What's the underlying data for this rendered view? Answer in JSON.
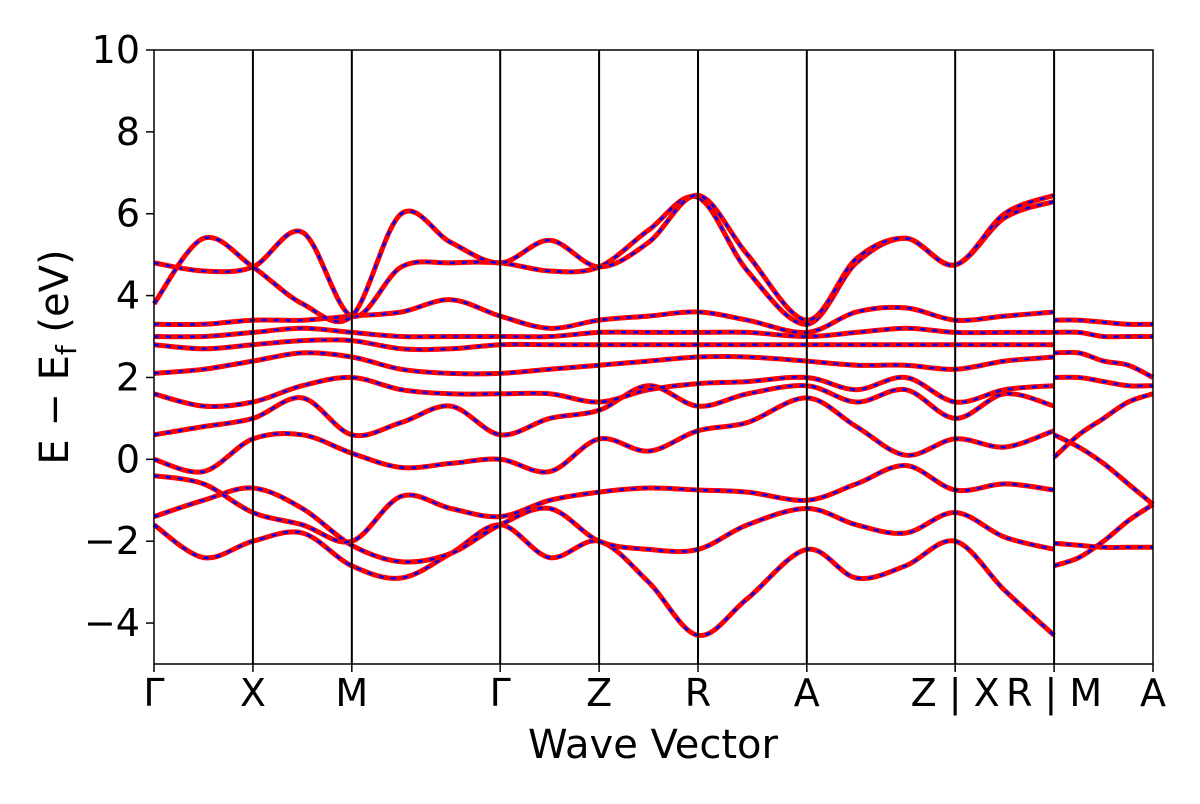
{
  "chart_data": {
    "type": "line",
    "title": "",
    "xlabel": "Wave Vector",
    "ylabel_parts": {
      "main": "E − E",
      "sub": "f",
      "unit": " (eV)"
    },
    "ylim": [
      -5,
      10
    ],
    "yticks": [
      10,
      8,
      6,
      4,
      2,
      0,
      -2,
      -4
    ],
    "ytick_labels": [
      "10",
      "8",
      "6",
      "4",
      "2",
      "0",
      "−2",
      "−4"
    ],
    "kpath_breaks": [
      0,
      1,
      2,
      3.5,
      4.5,
      5.5,
      6.6,
      8.1,
      9.1,
      10.1
    ],
    "xtick_labels": [
      "Γ",
      "X",
      "M",
      "Γ",
      "Z",
      "R",
      "A",
      "Z | X",
      "R | M",
      "A"
    ],
    "line_colors": {
      "band_solid": "#ff0000",
      "band_dashed": "#0000ff",
      "frame": "#000000"
    },
    "bands": [
      {
        "x": [
          0,
          0.5,
          1,
          1.5,
          2,
          2.5,
          3,
          3.5,
          4,
          4.5,
          5,
          5.5,
          6,
          6.6,
          7.1,
          7.6,
          8.1,
          8.6,
          9.1
        ],
        "y": [
          -1.6,
          -2.4,
          -2.0,
          -1.8,
          -2.6,
          -2.9,
          -2.3,
          -1.6,
          -2.4,
          -2.0,
          -3.0,
          -4.3,
          -3.4,
          -2.2,
          -2.9,
          -2.6,
          -2.0,
          -3.2,
          -4.3
        ]
      },
      {
        "x": [
          0,
          0.5,
          1,
          1.5,
          2,
          2.5,
          3,
          3.5,
          4,
          4.5,
          5,
          5.5,
          6,
          6.6,
          7.1,
          7.6,
          8.1,
          8.6,
          9.1
        ],
        "y": [
          -1.4,
          -1.0,
          -0.7,
          -1.2,
          -2.1,
          -2.5,
          -2.3,
          -1.6,
          -1.2,
          -2.0,
          -2.2,
          -2.2,
          -1.6,
          -1.2,
          -1.6,
          -1.8,
          -1.3,
          -1.9,
          -2.2
        ]
      },
      {
        "x": [
          0,
          0.5,
          1,
          1.5,
          2,
          2.5,
          3,
          3.5,
          4,
          4.5,
          5,
          5.5,
          6,
          6.6,
          7.1,
          7.6,
          8.1,
          8.6,
          9.1
        ],
        "y": [
          -0.4,
          -0.6,
          -1.3,
          -1.6,
          -2.0,
          -0.9,
          -1.2,
          -1.4,
          -1.0,
          -0.8,
          -0.7,
          -0.75,
          -0.8,
          -1.0,
          -0.6,
          -0.15,
          -0.75,
          -0.6,
          -0.75
        ]
      },
      {
        "x": [
          0,
          0.5,
          1,
          1.5,
          2,
          2.5,
          3,
          3.5,
          4,
          4.5,
          5,
          5.5,
          6,
          6.6,
          7.1,
          7.6,
          8.1,
          8.6,
          9.1
        ],
        "y": [
          0.0,
          -0.3,
          0.5,
          0.6,
          0.15,
          -0.2,
          -0.1,
          0.0,
          -0.3,
          0.5,
          0.2,
          0.7,
          0.9,
          1.5,
          0.8,
          0.1,
          0.5,
          0.3,
          0.7
        ]
      },
      {
        "x": [
          0,
          0.5,
          1,
          1.5,
          2,
          2.5,
          3,
          3.5,
          4,
          4.5,
          5,
          5.5,
          6,
          6.6,
          7.1,
          7.6,
          8.1,
          8.6,
          9.1
        ],
        "y": [
          0.6,
          0.8,
          1.0,
          1.5,
          0.6,
          0.9,
          1.3,
          0.6,
          1.0,
          1.2,
          1.8,
          1.3,
          1.6,
          1.8,
          1.4,
          1.7,
          1.0,
          1.6,
          1.3
        ]
      },
      {
        "x": [
          0,
          0.5,
          1,
          1.5,
          2,
          2.5,
          3,
          3.5,
          4,
          4.5,
          5,
          5.5,
          6,
          6.6,
          7.1,
          7.6,
          8.1,
          8.6,
          9.1
        ],
        "y": [
          1.6,
          1.3,
          1.4,
          1.8,
          2.0,
          1.7,
          1.6,
          1.6,
          1.6,
          1.4,
          1.7,
          1.85,
          1.9,
          2.0,
          1.7,
          2.0,
          1.4,
          1.7,
          1.8
        ]
      },
      {
        "x": [
          0,
          0.5,
          1,
          1.5,
          2,
          2.5,
          3,
          3.5,
          4,
          4.5,
          5,
          5.5,
          6,
          6.6,
          7.1,
          7.6,
          8.1,
          8.6,
          9.1
        ],
        "y": [
          2.1,
          2.2,
          2.4,
          2.6,
          2.5,
          2.2,
          2.1,
          2.1,
          2.2,
          2.3,
          2.4,
          2.5,
          2.5,
          2.4,
          2.3,
          2.3,
          2.2,
          2.4,
          2.5
        ]
      },
      {
        "x": [
          0,
          0.5,
          1,
          1.5,
          2,
          2.5,
          3,
          3.5,
          4,
          4.5,
          5,
          5.5,
          6,
          6.6,
          7.1,
          7.6,
          8.1,
          8.6,
          9.1
        ],
        "y": [
          2.8,
          2.7,
          2.8,
          2.9,
          2.9,
          2.7,
          2.7,
          2.8,
          2.8,
          2.8,
          2.8,
          2.8,
          2.8,
          2.8,
          2.8,
          2.8,
          2.8,
          2.8,
          2.8
        ]
      },
      {
        "x": [
          0,
          0.5,
          1,
          1.5,
          2,
          2.5,
          3,
          3.5,
          4,
          4.5,
          5,
          5.5,
          6,
          6.6,
          7.1,
          7.6,
          8.1,
          8.6,
          9.1
        ],
        "y": [
          3.0,
          3.0,
          3.1,
          3.2,
          3.1,
          3.0,
          3.0,
          3.0,
          3.0,
          3.1,
          3.1,
          3.1,
          3.1,
          3.0,
          3.1,
          3.2,
          3.1,
          3.1,
          3.1
        ]
      },
      {
        "x": [
          0,
          0.5,
          1,
          1.5,
          2,
          2.5,
          3,
          3.5,
          4,
          4.5,
          5,
          5.5,
          6,
          6.6,
          7.1,
          7.6,
          8.1,
          8.6,
          9.1
        ],
        "y": [
          3.3,
          3.3,
          3.4,
          3.4,
          3.5,
          3.6,
          3.9,
          3.5,
          3.2,
          3.4,
          3.5,
          3.6,
          3.4,
          3.1,
          3.6,
          3.7,
          3.4,
          3.5,
          3.6
        ]
      },
      {
        "x": [
          0,
          0.5,
          1,
          1.5,
          2,
          2.5,
          3,
          3.5,
          4,
          4.5,
          5,
          5.5,
          6,
          6.6,
          7.1,
          7.6,
          8.1,
          8.6,
          9.1
        ],
        "y": [
          4.8,
          4.6,
          4.7,
          5.55,
          3.5,
          4.7,
          4.8,
          4.8,
          4.6,
          4.7,
          5.6,
          6.4,
          4.6,
          3.3,
          4.8,
          5.4,
          4.75,
          5.9,
          6.3
        ]
      },
      {
        "x": [
          0,
          0.5,
          1,
          1.5,
          2,
          2.5,
          3,
          3.5,
          4,
          4.5,
          5,
          5.5,
          6,
          6.6,
          7.1,
          7.6,
          8.1,
          8.6,
          9.1
        ],
        "y": [
          3.8,
          5.4,
          4.7,
          3.8,
          3.5,
          6.0,
          5.3,
          4.8,
          5.35,
          4.7,
          5.3,
          6.45,
          5.0,
          3.4,
          4.9,
          5.4,
          4.75,
          6.0,
          6.45
        ]
      },
      {
        "x": [
          9.1,
          9.35,
          9.6,
          9.85,
          10.1
        ],
        "y": [
          3.4,
          3.4,
          3.35,
          3.3,
          3.3
        ]
      },
      {
        "x": [
          9.1,
          9.35,
          9.6,
          9.85,
          10.1
        ],
        "y": [
          3.1,
          3.1,
          3.0,
          3.0,
          3.0
        ]
      },
      {
        "x": [
          9.1,
          9.35,
          9.6,
          9.85,
          10.1
        ],
        "y": [
          2.6,
          2.6,
          2.4,
          2.3,
          2.0
        ]
      },
      {
        "x": [
          9.1,
          9.35,
          9.6,
          9.85,
          10.1
        ],
        "y": [
          2.0,
          2.0,
          1.9,
          1.8,
          1.8
        ]
      },
      {
        "x": [
          9.1,
          9.35,
          9.6,
          9.85,
          10.1
        ],
        "y": [
          0.6,
          0.3,
          -0.1,
          -0.6,
          -1.1
        ]
      },
      {
        "x": [
          9.1,
          9.35,
          9.6,
          9.85,
          10.1
        ],
        "y": [
          0.05,
          0.6,
          1.0,
          1.4,
          1.6
        ]
      },
      {
        "x": [
          9.1,
          9.35,
          9.6,
          9.85,
          10.1
        ],
        "y": [
          -2.6,
          -2.4,
          -2.0,
          -1.5,
          -1.1
        ]
      },
      {
        "x": [
          9.1,
          9.35,
          9.6,
          9.85,
          10.1
        ],
        "y": [
          -2.05,
          -2.1,
          -2.15,
          -2.15,
          -2.15
        ]
      }
    ]
  }
}
